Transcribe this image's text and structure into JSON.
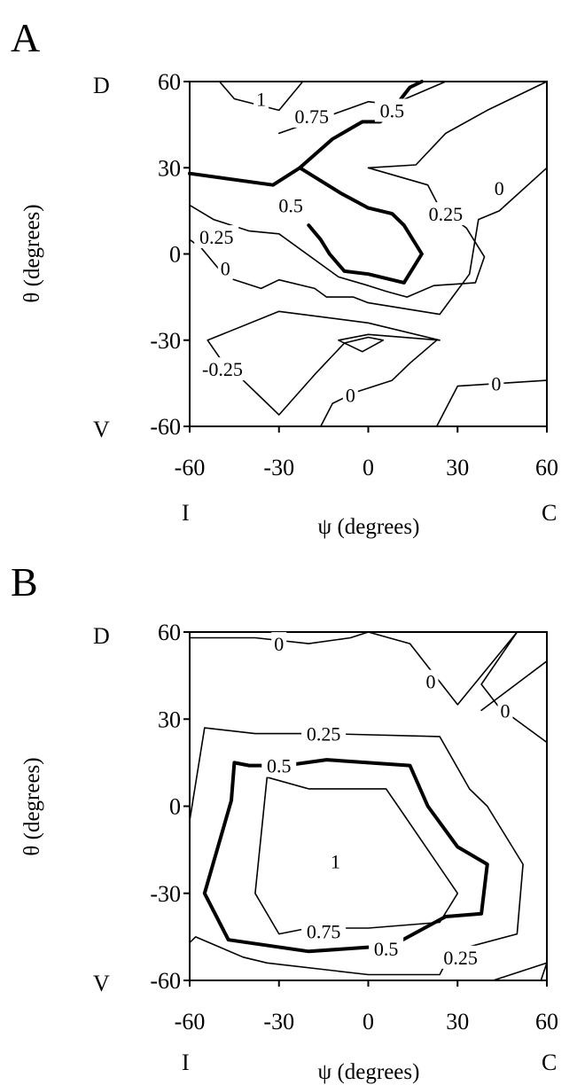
{
  "chart_data": [
    {
      "type": "contour",
      "panel_label": "A",
      "xlabel": "ψ (degrees)",
      "ylabel": "θ (degrees)",
      "xlim": [
        -60,
        60
      ],
      "ylim": [
        -60,
        60
      ],
      "xticks": [
        "-60",
        "-30",
        "0",
        "30",
        "60"
      ],
      "yticks": [
        "-60",
        "-30",
        "0",
        "30",
        "60"
      ],
      "x_end_labels": {
        "left": "I",
        "right": "C"
      },
      "y_end_labels": {
        "top": "D",
        "bottom": "V"
      },
      "contours": [
        {
          "level": 1,
          "bold": false,
          "points": [
            [
              -50,
              60
            ],
            [
              -45,
              54
            ],
            [
              -30,
              50
            ],
            [
              -22,
              60
            ]
          ]
        },
        {
          "level": 0.75,
          "bold": false,
          "points": [
            [
              -30,
              42
            ],
            [
              -8,
              50
            ],
            [
              0,
              53
            ],
            [
              8,
              52
            ],
            [
              26,
              60
            ]
          ]
        },
        {
          "level": 0.5,
          "bold": true,
          "points": [
            [
              -60,
              28
            ],
            [
              -32,
              24
            ],
            [
              -23,
              30
            ],
            [
              -12,
              40
            ],
            [
              -2,
              46
            ],
            [
              4,
              46
            ],
            [
              8,
              50
            ],
            [
              14,
              58
            ],
            [
              18,
              60
            ]
          ]
        },
        {
          "level": 0.5,
          "bold": true,
          "points": [
            [
              -23,
              30
            ],
            [
              -9,
              21
            ],
            [
              0,
              16
            ],
            [
              8,
              14
            ],
            [
              12,
              10
            ],
            [
              18,
              0
            ],
            [
              12,
              -10
            ],
            [
              0,
              -7
            ],
            [
              -8,
              -6
            ],
            [
              -13,
              0
            ],
            [
              -16,
              5
            ],
            [
              -20,
              10
            ]
          ]
        },
        {
          "level": 0.25,
          "bold": false,
          "points": [
            [
              -60,
              17
            ],
            [
              -52,
              12
            ],
            [
              -40,
              8
            ],
            [
              -30,
              7
            ],
            [
              -10,
              -8
            ],
            [
              0,
              -11
            ],
            [
              6,
              -13
            ],
            [
              13,
              -15
            ],
            [
              22,
              -11
            ],
            [
              36,
              -10
            ],
            [
              39,
              -1
            ],
            [
              33,
              9
            ],
            [
              24,
              16
            ],
            [
              20,
              24
            ],
            [
              0,
              30
            ],
            [
              16,
              31
            ],
            [
              26,
              42
            ],
            [
              40,
              50
            ],
            [
              60,
              60
            ]
          ]
        },
        {
          "level": 0,
          "bold": false,
          "points": [
            [
              -60,
              5
            ],
            [
              -56,
              2
            ],
            [
              -48,
              -8
            ],
            [
              -36,
              -12
            ],
            [
              -30,
              -9
            ],
            [
              -18,
              -12
            ],
            [
              -14,
              -15
            ],
            [
              -5,
              -15
            ],
            [
              0,
              -17
            ],
            [
              24,
              -21
            ],
            [
              34,
              -7
            ],
            [
              37,
              12
            ],
            [
              44,
              15
            ],
            [
              60,
              30
            ],
            [
              60,
              0
            ]
          ]
        },
        {
          "level": -0.25,
          "bold": false,
          "points": [
            [
              -30,
              -20
            ],
            [
              -54,
              -30
            ],
            [
              -50,
              -36
            ],
            [
              -30,
              -56
            ],
            [
              -18,
              -42
            ],
            [
              -8,
              -31
            ],
            [
              0,
              -29
            ],
            [
              5,
              -30
            ],
            [
              -2,
              -34
            ],
            [
              -10,
              -30
            ],
            [
              0,
              -28
            ],
            [
              24,
              -30
            ],
            [
              0,
              -24
            ],
            [
              -30,
              -20
            ]
          ]
        },
        {
          "level": 0,
          "bold": false,
          "points": [
            [
              -16,
              -60
            ],
            [
              -12,
              -52
            ],
            [
              -4,
              -48
            ],
            [
              8,
              -44
            ],
            [
              14,
              -38
            ],
            [
              23,
              -30
            ]
          ]
        },
        {
          "level": 0,
          "bold": false,
          "points": [
            [
              23,
              -60
            ],
            [
              30,
              -46
            ],
            [
              60,
              -44
            ]
          ]
        }
      ],
      "contour_labels": [
        {
          "text": "1",
          "x": -36,
          "y": 54
        },
        {
          "text": "0.75",
          "x": -19,
          "y": 48
        },
        {
          "text": "0.5",
          "x": 8,
          "y": 50
        },
        {
          "text": "0.5",
          "x": -26,
          "y": 17
        },
        {
          "text": "0.25",
          "x": 26,
          "y": 14
        },
        {
          "text": "0",
          "x": 44,
          "y": 23
        },
        {
          "text": "0.25",
          "x": -51,
          "y": 6
        },
        {
          "text": "0",
          "x": -48,
          "y": -5
        },
        {
          "text": "-0.25",
          "x": -49,
          "y": -40
        },
        {
          "text": "0",
          "x": -6,
          "y": -49
        },
        {
          "text": "0",
          "x": 43,
          "y": -45
        }
      ]
    },
    {
      "type": "contour",
      "panel_label": "B",
      "xlabel": "ψ (degrees)",
      "ylabel": "θ (degrees)",
      "xlim": [
        -60,
        60
      ],
      "ylim": [
        -60,
        60
      ],
      "xticks": [
        "-60",
        "-30",
        "0",
        "30",
        "60"
      ],
      "yticks": [
        "-60",
        "-30",
        "0",
        "30",
        "60"
      ],
      "x_end_labels": {
        "left": "I",
        "right": "C"
      },
      "y_end_labels": {
        "top": "D",
        "bottom": "V"
      },
      "contours": [
        {
          "level": 0,
          "bold": false,
          "points": [
            [
              -60,
              58
            ],
            [
              -38,
              58
            ],
            [
              -20,
              56
            ],
            [
              -6,
              58
            ],
            [
              0,
              60
            ],
            [
              14,
              56
            ],
            [
              30,
              35
            ],
            [
              50,
              60
            ]
          ]
        },
        {
          "level": 0,
          "bold": false,
          "points": [
            [
              50,
              60
            ],
            [
              38,
              42
            ],
            [
              44,
              34
            ],
            [
              60,
              22
            ]
          ]
        },
        {
          "level": 0,
          "bold": false,
          "points": [
            [
              60,
              50
            ],
            [
              38,
              33
            ]
          ]
        },
        {
          "level": 0.25,
          "bold": false,
          "points": [
            [
              -60,
              -5
            ],
            [
              -55,
              27
            ],
            [
              -38,
              25
            ],
            [
              -15,
              25
            ],
            [
              24,
              24
            ],
            [
              34,
              6
            ],
            [
              40,
              0
            ],
            [
              52,
              -20
            ],
            [
              50,
              -44
            ],
            [
              28,
              -50
            ],
            [
              24,
              -58
            ],
            [
              0,
              -58
            ],
            [
              -34,
              -54
            ],
            [
              -42,
              -52
            ],
            [
              -58,
              -45
            ],
            [
              -60,
              -47
            ]
          ]
        },
        {
          "level": 0.5,
          "bold": true,
          "points": [
            [
              -45,
              15
            ],
            [
              -46,
              2
            ],
            [
              -55,
              -30
            ],
            [
              -47,
              -46
            ],
            [
              -20,
              -50
            ],
            [
              8,
              -48
            ],
            [
              26,
              -38
            ],
            [
              38,
              -37
            ],
            [
              40,
              -20
            ],
            [
              30,
              -14
            ],
            [
              20,
              0
            ],
            [
              14,
              14
            ],
            [
              -14,
              16
            ],
            [
              -28,
              14
            ],
            [
              -40,
              14
            ],
            [
              -45,
              15
            ]
          ]
        },
        {
          "level": 0.75,
          "bold": false,
          "points": [
            [
              -34,
              10
            ],
            [
              -38,
              -30
            ],
            [
              -30,
              -44
            ],
            [
              -20,
              -42
            ],
            [
              0,
              -42
            ],
            [
              24,
              -40
            ],
            [
              30,
              -30
            ],
            [
              10,
              0
            ],
            [
              6,
              6
            ],
            [
              -2,
              6
            ],
            [
              -20,
              6
            ],
            [
              -34,
              10
            ]
          ]
        },
        {
          "level": 0.25,
          "bold": false,
          "points": [
            [
              42,
              -60
            ],
            [
              60,
              -54
            ],
            [
              58,
              -60
            ]
          ]
        }
      ],
      "contour_labels": [
        {
          "text": "0",
          "x": -30,
          "y": 56
        },
        {
          "text": "0",
          "x": 21,
          "y": 43
        },
        {
          "text": "0",
          "x": 46,
          "y": 33
        },
        {
          "text": "0.25",
          "x": -15,
          "y": 25
        },
        {
          "text": "0.5",
          "x": -30,
          "y": 14
        },
        {
          "text": "1",
          "x": -11,
          "y": -19
        },
        {
          "text": "0.75",
          "x": -15,
          "y": -43
        },
        {
          "text": "0.5",
          "x": 6,
          "y": -49
        },
        {
          "text": "0.25",
          "x": 31,
          "y": -52
        }
      ]
    }
  ]
}
